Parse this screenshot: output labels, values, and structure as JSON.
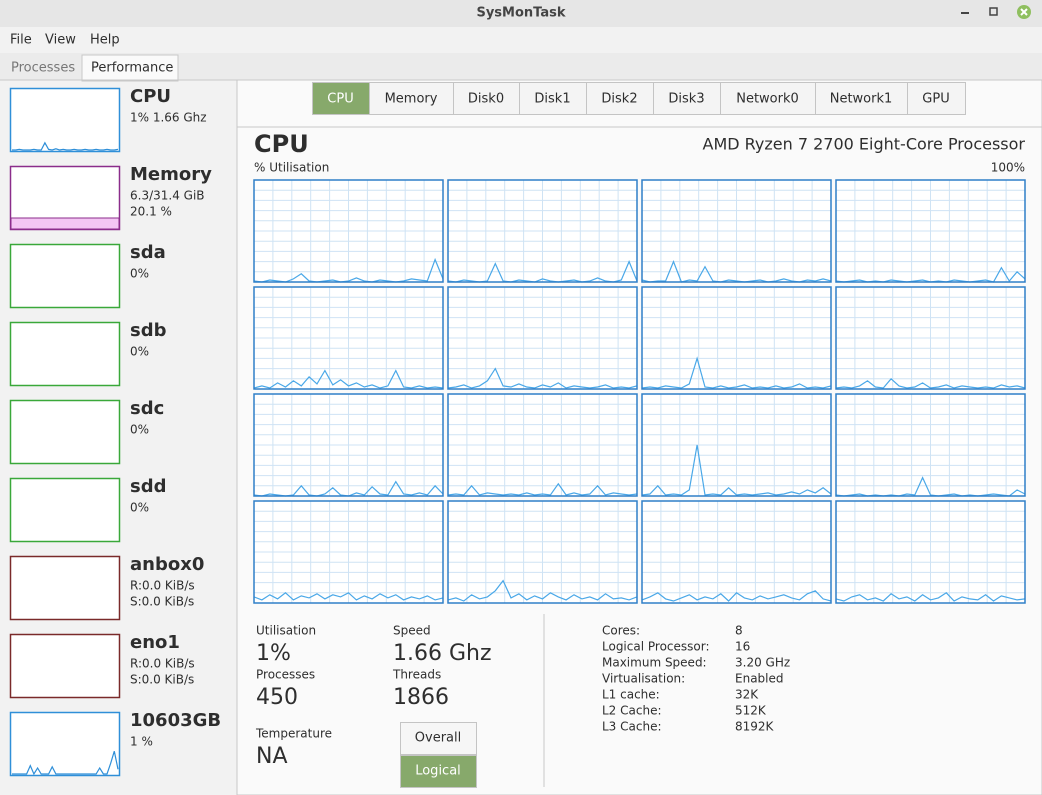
{
  "window": {
    "title": "SysMonTask"
  },
  "menu": [
    "File",
    "View",
    "Help"
  ],
  "tabs": [
    "Processes",
    "Performance"
  ],
  "sidebar": [
    {
      "name": "CPU",
      "lines": [
        "1% 1.66 Ghz"
      ],
      "color": "#2f8fd8",
      "history": [
        0,
        0,
        1,
        0,
        0,
        0,
        1,
        0,
        0,
        12,
        1,
        0,
        2,
        0,
        1,
        0,
        0,
        1,
        0,
        0,
        1,
        0,
        0,
        1,
        0,
        0,
        1,
        0,
        0,
        1
      ]
    },
    {
      "name": "Memory",
      "lines": [
        "6.3/31.4 GiB",
        "20.1 %"
      ],
      "color": "#8b2d8b"
    },
    {
      "name": "sda",
      "lines": [
        "0%"
      ],
      "color": "#3aa83a"
    },
    {
      "name": "sdb",
      "lines": [
        "0%"
      ],
      "color": "#3aa83a"
    },
    {
      "name": "sdc",
      "lines": [
        "0%"
      ],
      "color": "#3aa83a"
    },
    {
      "name": "sdd",
      "lines": [
        "0%"
      ],
      "color": "#3aa83a"
    },
    {
      "name": "anbox0",
      "lines": [
        "R:0.0 KiB/s",
        "S:0.0 KiB/s"
      ],
      "color": "#7a2a2a"
    },
    {
      "name": "eno1",
      "lines": [
        "R:0.0 KiB/s",
        "S:0.0 KiB/s"
      ],
      "color": "#7a2a2a"
    },
    {
      "name": "10603GB",
      "lines": [
        "1 %"
      ],
      "color": "#2f8fd8",
      "history": [
        0,
        0,
        0,
        0,
        0,
        14,
        0,
        10,
        0,
        0,
        0,
        12,
        0,
        0,
        0,
        0,
        0,
        0,
        0,
        0,
        0,
        0,
        0,
        0,
        10,
        0,
        0,
        18,
        38,
        8
      ]
    }
  ],
  "device_tabs": [
    "CPU",
    "Memory",
    "Disk0",
    "Disk1",
    "Disk2",
    "Disk3",
    "Network0",
    "Network1",
    "GPU"
  ],
  "heading": "CPU",
  "processor": "AMD Ryzen 7 2700 Eight-Core Processor",
  "axis_label": "% Utilisation",
  "axis_max": "100%",
  "core_graphs": [
    [
      1,
      0,
      2,
      1,
      0,
      3,
      8,
      1,
      0,
      1,
      2,
      0,
      1,
      4,
      1,
      0,
      2,
      1,
      0,
      1,
      3,
      2,
      1,
      22,
      3
    ],
    [
      1,
      0,
      2,
      1,
      0,
      1,
      18,
      1,
      0,
      2,
      1,
      0,
      3,
      1,
      0,
      1,
      2,
      0,
      1,
      4,
      1,
      0,
      2,
      20,
      1
    ],
    [
      2,
      0,
      1,
      1,
      20,
      0,
      2,
      1,
      15,
      1,
      0,
      2,
      1,
      0,
      1,
      2,
      0,
      1,
      3,
      1,
      0,
      2,
      1,
      3,
      1
    ],
    [
      1,
      0,
      1,
      2,
      0,
      1,
      0,
      2,
      1,
      0,
      1,
      2,
      0,
      1,
      0,
      2,
      1,
      0,
      1,
      2,
      0,
      14,
      1,
      10,
      3
    ],
    [
      1,
      3,
      1,
      6,
      2,
      8,
      3,
      12,
      5,
      18,
      4,
      9,
      3,
      6,
      2,
      4,
      1,
      3,
      18,
      2,
      1,
      3,
      1,
      2,
      1
    ],
    [
      1,
      2,
      4,
      1,
      3,
      8,
      20,
      3,
      2,
      5,
      2,
      1,
      4,
      2,
      6,
      1,
      3,
      2,
      1,
      2,
      4,
      1,
      2,
      1,
      3
    ],
    [
      1,
      2,
      1,
      3,
      2,
      1,
      5,
      30,
      2,
      1,
      3,
      1,
      2,
      4,
      1,
      2,
      1,
      3,
      1,
      2,
      5,
      1,
      2,
      1,
      3
    ],
    [
      1,
      2,
      1,
      3,
      8,
      2,
      1,
      10,
      3,
      1,
      2,
      6,
      1,
      2,
      4,
      1,
      3,
      2,
      1,
      2,
      1,
      4,
      2,
      3,
      1
    ],
    [
      1,
      0,
      2,
      1,
      0,
      1,
      10,
      1,
      0,
      2,
      8,
      1,
      0,
      3,
      1,
      9,
      2,
      1,
      14,
      2,
      1,
      3,
      1,
      10,
      2
    ],
    [
      1,
      2,
      1,
      10,
      1,
      3,
      2,
      1,
      2,
      1,
      3,
      1,
      2,
      1,
      12,
      1,
      3,
      1,
      2,
      10,
      1,
      3,
      2,
      1,
      2
    ],
    [
      1,
      2,
      10,
      1,
      2,
      1,
      6,
      50,
      1,
      2,
      1,
      8,
      1,
      2,
      1,
      2,
      3,
      1,
      2,
      4,
      2,
      6,
      3,
      8,
      2
    ],
    [
      1,
      0,
      1,
      2,
      0,
      1,
      0,
      1,
      0,
      2,
      1,
      18,
      1,
      0,
      1,
      2,
      0,
      1,
      0,
      1,
      2,
      1,
      0,
      6,
      2
    ],
    [
      6,
      3,
      8,
      4,
      10,
      3,
      7,
      5,
      9,
      4,
      8,
      6,
      10,
      3,
      7,
      4,
      9,
      5,
      8,
      3,
      6,
      4,
      7,
      3,
      5
    ],
    [
      3,
      5,
      2,
      8,
      4,
      6,
      12,
      22,
      5,
      9,
      3,
      7,
      4,
      10,
      6,
      3,
      8,
      4,
      6,
      3,
      9,
      4,
      5,
      3,
      6
    ],
    [
      3,
      6,
      10,
      4,
      2,
      5,
      8,
      3,
      6,
      4,
      9,
      2,
      10,
      5,
      3,
      7,
      4,
      6,
      8,
      5,
      3,
      9,
      12,
      4,
      2
    ],
    [
      4,
      2,
      6,
      8,
      3,
      5,
      2,
      9,
      4,
      6,
      2,
      8,
      3,
      5,
      10,
      2,
      6,
      4,
      3,
      8,
      2,
      7,
      5,
      3,
      4
    ]
  ],
  "stats": [
    {
      "label": "Utilisation",
      "value": "1%"
    },
    {
      "label": "Speed",
      "value": "1.66 Ghz"
    },
    {
      "label": "Processes",
      "value": "450"
    },
    {
      "label": "Threads",
      "value": "1866"
    },
    {
      "label": "Temperature",
      "value": "NA"
    }
  ],
  "buttons": [
    "Overall",
    "Logical"
  ],
  "info": [
    [
      "Cores:",
      "8"
    ],
    [
      "Logical Processor:",
      "16"
    ],
    [
      "Maximum Speed:",
      "3.20 GHz"
    ],
    [
      "Virtualisation:",
      "Enabled"
    ],
    [
      "L1 cache:",
      "32K"
    ],
    [
      "L2 Cache:",
      "512K"
    ],
    [
      "L3 Cache:",
      "8192K"
    ]
  ]
}
